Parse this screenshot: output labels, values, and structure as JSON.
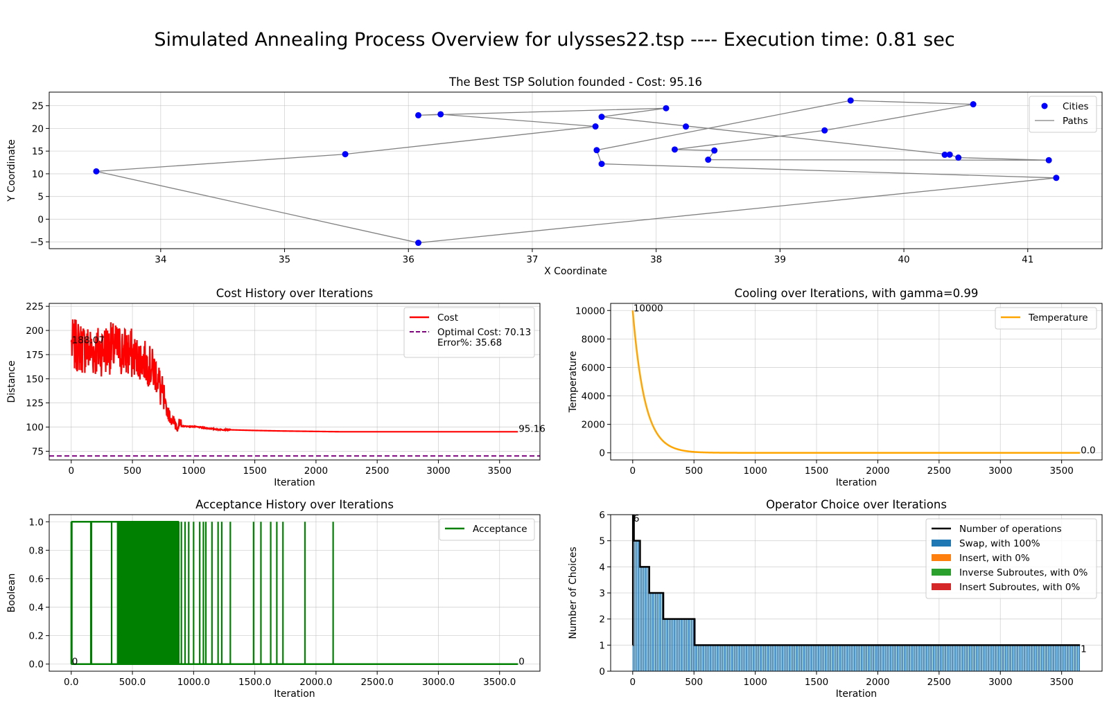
{
  "suptitle": "Simulated Annealing Process Overview for ulysses22.tsp ---- Execution time: 0.81 sec",
  "chart_data": [
    {
      "id": "tsp",
      "type": "scatter",
      "title": "The Best TSP Solution founded - Cost: 95.16",
      "xlabel": "X Coordinate",
      "ylabel": "Y Coordinate",
      "xlim": [
        33.1,
        41.6
      ],
      "ylim": [
        -6.5,
        28
      ],
      "xticks": [
        34,
        35,
        36,
        37,
        38,
        39,
        40,
        41
      ],
      "yticks": [
        -5,
        0,
        5,
        10,
        15,
        20,
        25
      ],
      "grid": true,
      "legend_position": "top-right",
      "legend": [
        "Cities",
        "Paths"
      ],
      "colors": {
        "cities": "#0000ff",
        "paths": "#808080"
      },
      "route": [
        [
          33.48,
          10.54
        ],
        [
          35.49,
          14.32
        ],
        [
          37.51,
          20.44
        ],
        [
          36.26,
          23.12
        ],
        [
          36.08,
          22.9
        ],
        [
          38.08,
          24.45
        ],
        [
          37.56,
          22.56
        ],
        [
          40.37,
          14.23
        ],
        [
          40.44,
          13.57
        ],
        [
          41.17,
          13.0
        ],
        [
          38.42,
          13.11
        ],
        [
          38.47,
          15.13
        ],
        [
          38.15,
          15.35
        ],
        [
          39.36,
          19.56
        ],
        [
          40.56,
          25.32
        ],
        [
          39.57,
          26.15
        ],
        [
          37.52,
          15.21
        ],
        [
          37.56,
          12.19
        ],
        [
          41.23,
          9.1
        ],
        [
          36.08,
          -5.21
        ],
        [
          33.48,
          10.54
        ]
      ],
      "extra_cities": [
        [
          38.24,
          20.42
        ],
        [
          40.33,
          14.2
        ]
      ]
    },
    {
      "id": "cost",
      "type": "line",
      "title": "Cost History over Iterations",
      "xlabel": "Iteration",
      "ylabel": "Distance",
      "xlim": [
        -180,
        3830
      ],
      "ylim": [
        66,
        228
      ],
      "xticks": [
        0,
        500,
        1000,
        1500,
        2000,
        2500,
        3000,
        3500
      ],
      "yticks": [
        75,
        100,
        125,
        150,
        175,
        200,
        225
      ],
      "grid": true,
      "legend_position": "top-right",
      "series": [
        {
          "name": "Cost",
          "color": "#ff0000"
        }
      ],
      "optimal": {
        "name": "Optimal Cost: 70.13",
        "name2": "Error%: 35.68",
        "value": 70.13,
        "color": "#800080"
      },
      "annotations": [
        {
          "text": "188.07",
          "x": 0,
          "y": 188.07
        },
        {
          "text": "95.16",
          "x": 3650,
          "y": 95.16
        }
      ],
      "n_iter": 3650,
      "start": 188.07,
      "final": 95.16,
      "profile": [
        [
          0,
          185
        ],
        [
          100,
          182
        ],
        [
          200,
          178
        ],
        [
          300,
          182
        ],
        [
          400,
          180
        ],
        [
          500,
          175
        ],
        [
          600,
          168
        ],
        [
          700,
          155
        ],
        [
          750,
          128
        ],
        [
          800,
          112
        ],
        [
          850,
          103
        ],
        [
          900,
          101
        ],
        [
          1000,
          100.5
        ],
        [
          1200,
          97.5
        ],
        [
          1500,
          96.5
        ],
        [
          1700,
          96
        ],
        [
          2000,
          95.5
        ],
        [
          2200,
          95.16
        ],
        [
          3650,
          95.16
        ]
      ]
    },
    {
      "id": "cooling",
      "type": "line",
      "title": "Cooling over Iterations, with gamma=0.99",
      "xlabel": "Iteration",
      "ylabel": "Temperature",
      "xlim": [
        -180,
        3830
      ],
      "ylim": [
        -500,
        10500
      ],
      "xticks": [
        0,
        500,
        1000,
        1500,
        2000,
        2500,
        3000,
        3500
      ],
      "yticks": [
        0,
        2000,
        4000,
        6000,
        8000,
        10000
      ],
      "grid": true,
      "legend_position": "top-right",
      "series": [
        {
          "name": "Temperature",
          "color": "#ffa500"
        }
      ],
      "t0": 10000,
      "gamma": 0.99,
      "n_iter": 3650,
      "annotations": [
        {
          "text": "10000",
          "x": 0,
          "y": 10000
        },
        {
          "text": "0.0",
          "x": 3650,
          "y": 0
        }
      ]
    },
    {
      "id": "acceptance",
      "type": "line",
      "title": "Acceptance History over Iterations",
      "xlabel": "Iteration",
      "ylabel": "Boolean",
      "xlim": [
        -180,
        3830
      ],
      "ylim": [
        -0.05,
        1.05
      ],
      "xticks": [
        0,
        500,
        1000,
        1500,
        2000,
        2500,
        3000,
        3500
      ],
      "yticks": [
        0.0,
        0.2,
        0.4,
        0.6,
        0.8,
        1.0
      ],
      "grid": true,
      "legend_position": "top-right",
      "series": [
        {
          "name": "Acceptance",
          "color": "#008000"
        }
      ],
      "dense_range": [
        380,
        880
      ],
      "spikes": [
        0,
        5,
        160,
        165,
        330,
        380,
        420,
        450,
        490,
        520,
        560,
        600,
        900,
        930,
        960,
        1000,
        1050,
        1080,
        1100,
        1150,
        1200,
        1230,
        1300,
        1490,
        1550,
        1630,
        1680,
        1730,
        1910,
        2140
      ],
      "annotations": [
        {
          "text": "0",
          "x": 0,
          "y": 0
        },
        {
          "text": "0",
          "x": 3650,
          "y": 0
        }
      ]
    },
    {
      "id": "operators",
      "type": "bar",
      "title": "Operator Choice over Iterations",
      "xlabel": "Iteration",
      "ylabel": "Number of Choices",
      "xlim": [
        -180,
        3830
      ],
      "ylim": [
        0,
        6
      ],
      "xticks": [
        0,
        500,
        1000,
        1500,
        2000,
        2500,
        3000,
        3500
      ],
      "yticks": [
        0,
        1,
        2,
        3,
        4,
        5,
        6
      ],
      "grid": true,
      "legend_position": "top-right",
      "series": [
        {
          "name": "Number of operations",
          "color": "#000000"
        },
        {
          "name": "Swap, with 100%",
          "color": "#1f77b4"
        },
        {
          "name": "Insert, with 0%",
          "color": "#ff7f0e"
        },
        {
          "name": "Inverse Subroutes, with 0%",
          "color": "#2ca02c"
        },
        {
          "name": "Insert Subroutes, with 0%",
          "color": "#d62728"
        }
      ],
      "steps": [
        [
          0,
          1
        ],
        [
          2,
          6
        ],
        [
          10,
          5
        ],
        [
          60,
          4
        ],
        [
          135,
          3
        ],
        [
          250,
          2
        ],
        [
          505,
          1
        ],
        [
          3650,
          1
        ]
      ],
      "annotations": [
        {
          "text": "6",
          "x": 0,
          "y": 6
        },
        {
          "text": "1",
          "x": 3650,
          "y": 1
        }
      ]
    }
  ]
}
